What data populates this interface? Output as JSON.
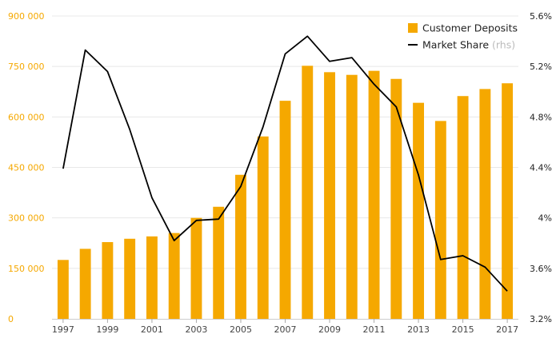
{
  "chart_data": {
    "type": "bar+line",
    "categories": [
      "1997",
      "1998",
      "1999",
      "2000",
      "2001",
      "2002",
      "2003",
      "2004",
      "2005",
      "2006",
      "2007",
      "2008",
      "2009",
      "2010",
      "2011",
      "2012",
      "2013",
      "2014",
      "2015",
      "2016",
      "2017"
    ],
    "x_tick_labels": [
      "1997",
      "1999",
      "2001",
      "2003",
      "2005",
      "2007",
      "2009",
      "2011",
      "2013",
      "2015",
      "2017"
    ],
    "series": [
      {
        "name": "Customer Deposits",
        "type": "bar",
        "axis": "left",
        "color": "#F5A800",
        "values": [
          175000,
          208000,
          228000,
          238000,
          245000,
          255000,
          300000,
          333000,
          428000,
          542000,
          648000,
          752000,
          733000,
          725000,
          737000,
          713000,
          642000,
          588000,
          662000,
          683000,
          700000
        ]
      },
      {
        "name": "Market Share",
        "name_note": "(rhs)",
        "type": "line",
        "axis": "right",
        "color": "#000000",
        "values": [
          4.39,
          5.33,
          5.16,
          4.7,
          4.16,
          3.82,
          3.98,
          3.99,
          4.25,
          4.72,
          5.3,
          5.44,
          5.24,
          5.27,
          5.06,
          4.88,
          4.34,
          3.67,
          3.7,
          3.61,
          3.42
        ]
      }
    ],
    "y_left": {
      "min": 0,
      "max": 900000,
      "ticks": [
        0,
        150000,
        300000,
        450000,
        600000,
        750000,
        900000
      ],
      "tick_labels": [
        "0",
        "150 000",
        "300 000",
        "450 000",
        "600 000",
        "750 000",
        "900 000"
      ]
    },
    "y_right": {
      "min": 3.2,
      "max": 5.6,
      "ticks": [
        3.2,
        3.6,
        4.0,
        4.4,
        4.8,
        5.2,
        5.6
      ],
      "tick_labels": [
        "3.2%",
        "3.6%",
        "4%",
        "4.4%",
        "4.8%",
        "5.2%",
        "5.6%"
      ]
    },
    "legend": {
      "position": "top-right",
      "items": [
        "Customer Deposits",
        "Market Share"
      ]
    },
    "grid": true,
    "colors": {
      "bar": "#F5A800",
      "line": "#000000",
      "left_axis_text": "#F5A800",
      "right_axis_text": "#222222",
      "grid": "#e8e8e8"
    }
  }
}
